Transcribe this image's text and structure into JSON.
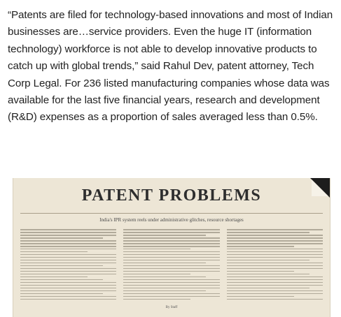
{
  "article": {
    "paragraph": "“Patents are filed for technology-based innovations and most of Indian businesses are…service providers. Even the huge IT (information technology) workforce is not able to develop innovative products to catch up with global trends,” said Rahul Dev, patent attorney, Tech Corp Legal. For 236 listed manufacturing companies whose data was available for the last five financial years, research and development (R&D) expenses as a proportion of sales averaged less than 0.5%."
  },
  "clipping": {
    "headline": "PATENT PROBLEMS",
    "subhead": "India's IPR system reels under administrative glitches, resource shortages",
    "byline": "By Staff",
    "background_color": "#ede6d6"
  }
}
